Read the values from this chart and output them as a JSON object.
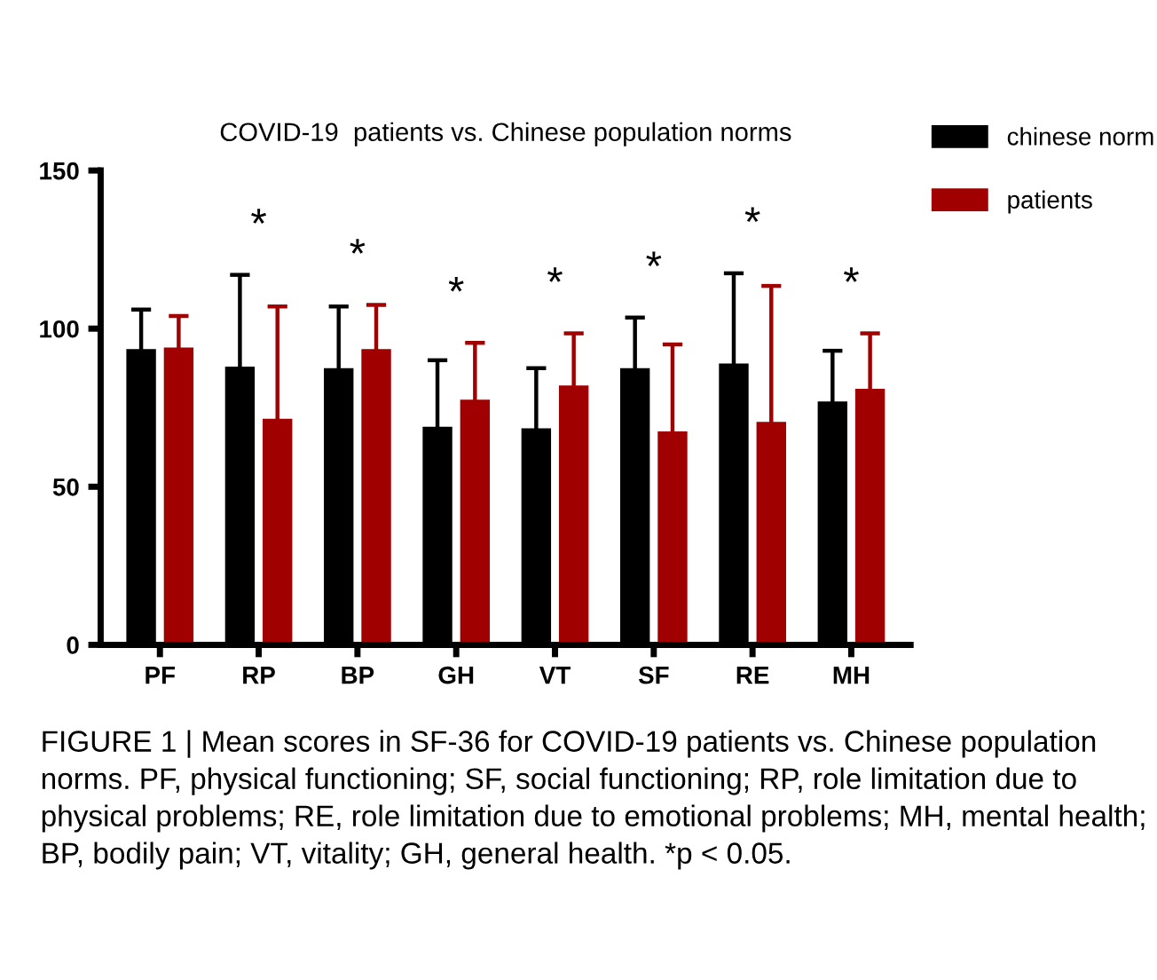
{
  "chart_data": {
    "type": "bar",
    "title": "COVID-19  patients vs. Chinese population norms",
    "categories": [
      "PF",
      "RP",
      "BP",
      "GH",
      "VT",
      "SF",
      "RE",
      "MH"
    ],
    "series": [
      {
        "name": "chinese norm",
        "color": "#000000",
        "values": [
          93.5,
          88,
          87.5,
          69,
          68.5,
          87.5,
          89,
          77
        ],
        "errors": [
          12.5,
          29,
          19.5,
          21,
          19,
          16,
          28.5,
          16
        ]
      },
      {
        "name": "patients",
        "color": "#a00000",
        "values": [
          94,
          71.5,
          93.5,
          77.5,
          82,
          67.5,
          70.5,
          81
        ],
        "errors": [
          10,
          35.5,
          14,
          18,
          16.5,
          27.5,
          43,
          17.5
        ]
      }
    ],
    "ylim": [
      0,
      150
    ],
    "yticks": [
      0,
      50,
      100,
      150
    ],
    "grid": false,
    "legend": "top right",
    "annotations": [
      "*",
      "*",
      "*",
      "*",
      "*",
      "*",
      "*",
      "FIGURE 1 | Mean scores in SF-36 for COVID-19 patients vs. Chinese population norms. PF, physical functioning; SF, social functioning; RP, role limitation due to physical problems; RE, role limitation due to emotional problems; MH, mental health; BP, bodily pain; VT, vitality; GH, general health. *p < 0.05."
    ]
  }
}
